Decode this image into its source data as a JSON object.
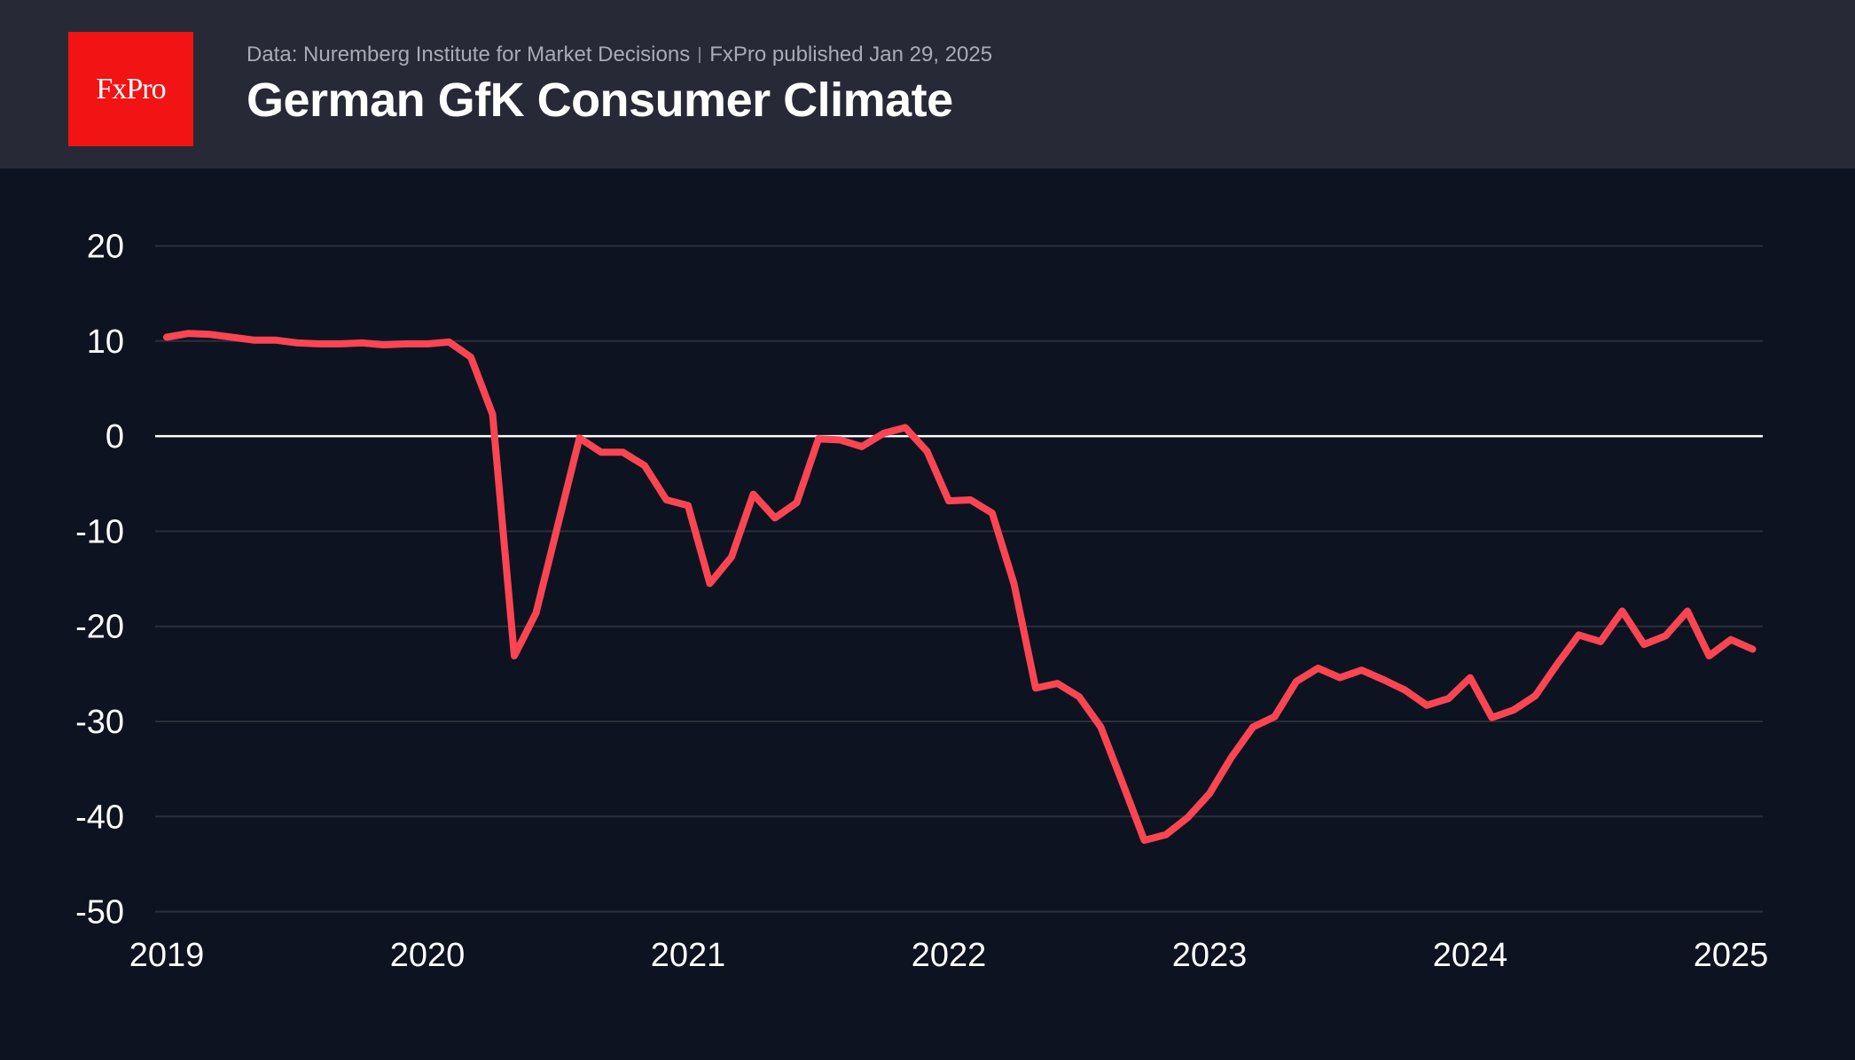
{
  "header": {
    "logo_text": "FxPro",
    "source": "Data: Nuremberg Institute for Market Decisions",
    "published": "FxPro published Jan 29, 2025",
    "title": "German GfK Consumer Climate"
  },
  "colors": {
    "header_bg": "#272a36",
    "chart_bg": "#0d1320",
    "logo_red": "#f21414",
    "line": "#fb4552",
    "grid": "#2a2f3b",
    "zero_line": "#ffffff"
  },
  "chart_data": {
    "type": "line",
    "title": "German GfK Consumer Climate",
    "xlabel": "",
    "ylabel": "",
    "ylim": [
      -50,
      20
    ],
    "yticks": [
      20,
      10,
      0,
      -10,
      -20,
      -30,
      -40,
      -50
    ],
    "ytick_labels": [
      "20",
      "10",
      "0",
      "-10",
      "-20",
      "-30",
      "-40",
      "-50"
    ],
    "xticks": [
      "2019",
      "2020",
      "2021",
      "2022",
      "2023",
      "2024",
      "2025"
    ],
    "x_range": [
      "2019-01",
      "2025-02"
    ],
    "grid": true,
    "legend": "none",
    "series": [
      {
        "name": "GfK Consumer Climate",
        "x": [
          "2019-01",
          "2019-02",
          "2019-03",
          "2019-04",
          "2019-05",
          "2019-06",
          "2019-07",
          "2019-08",
          "2019-09",
          "2019-10",
          "2019-11",
          "2019-12",
          "2020-01",
          "2020-02",
          "2020-03",
          "2020-04",
          "2020-05",
          "2020-06",
          "2020-07",
          "2020-08",
          "2020-09",
          "2020-10",
          "2020-11",
          "2020-12",
          "2021-01",
          "2021-02",
          "2021-03",
          "2021-04",
          "2021-05",
          "2021-06",
          "2021-07",
          "2021-08",
          "2021-09",
          "2021-10",
          "2021-11",
          "2021-12",
          "2022-01",
          "2022-02",
          "2022-03",
          "2022-04",
          "2022-05",
          "2022-06",
          "2022-07",
          "2022-08",
          "2022-09",
          "2022-10",
          "2022-11",
          "2022-12",
          "2023-01",
          "2023-02",
          "2023-03",
          "2023-04",
          "2023-05",
          "2023-06",
          "2023-07",
          "2023-08",
          "2023-09",
          "2023-10",
          "2023-11",
          "2023-12",
          "2024-01",
          "2024-02",
          "2024-03",
          "2024-04",
          "2024-05",
          "2024-06",
          "2024-07",
          "2024-08",
          "2024-09",
          "2024-10",
          "2024-11",
          "2024-12",
          "2025-01",
          "2025-02"
        ],
        "values": [
          10.4,
          10.8,
          10.7,
          10.4,
          10.1,
          10.1,
          9.8,
          9.7,
          9.7,
          9.8,
          9.6,
          9.7,
          9.7,
          9.9,
          8.3,
          2.3,
          -23.1,
          -18.6,
          -9.4,
          -0.2,
          -1.7,
          -1.7,
          -3.1,
          -6.7,
          -7.3,
          -15.5,
          -12.7,
          -6.1,
          -8.6,
          -7.0,
          -0.3,
          -0.4,
          -1.1,
          0.3,
          0.9,
          -1.6,
          -6.8,
          -6.7,
          -8.1,
          -15.5,
          -26.5,
          -26.0,
          -27.4,
          -30.6,
          -36.5,
          -42.5,
          -41.9,
          -40.1,
          -37.6,
          -33.8,
          -30.6,
          -29.5,
          -25.8,
          -24.4,
          -25.4,
          -24.6,
          -25.6,
          -26.7,
          -28.3,
          -27.6,
          -25.4,
          -29.6,
          -28.8,
          -27.3,
          -24.0,
          -20.9,
          -21.6,
          -18.4,
          -21.9,
          -21.0,
          -18.4,
          -23.1,
          -21.4,
          -22.4
        ]
      }
    ]
  }
}
